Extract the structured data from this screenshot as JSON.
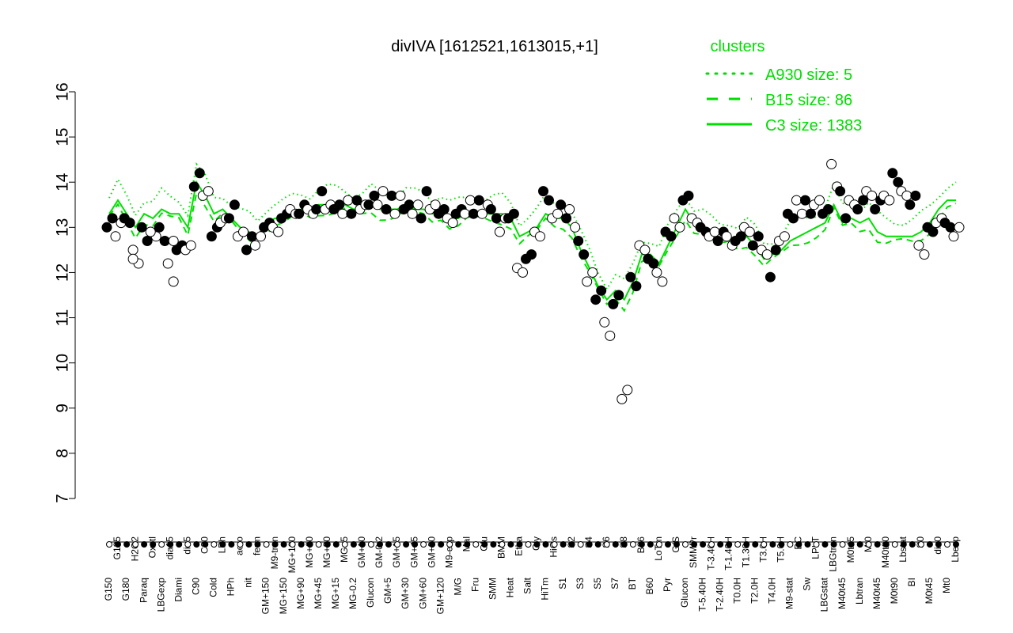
{
  "chart_data": {
    "type": "line",
    "title": "divIVA [1612521,1613015,+1]",
    "xlabel": "",
    "ylabel": "",
    "ylim": [
      7,
      16
    ],
    "yticks": [
      7,
      8,
      9,
      10,
      11,
      12,
      13,
      14,
      15,
      16
    ],
    "grid": false,
    "legend_position": "top-right",
    "legend": {
      "title": "clusters",
      "entries": [
        {
          "label": "A930 size: 5",
          "style": "dotted"
        },
        {
          "label": "B15 size: 86",
          "style": "dashed"
        },
        {
          "label": "C3 size: 1383",
          "style": "solid"
        }
      ]
    },
    "colors": {
      "line": "#00e000",
      "points": "#000000",
      "axis": "#000000"
    },
    "categories": [
      "G150",
      "G135",
      "G180",
      "H2O2",
      "Paraq",
      "Oxctl",
      "LBGexp",
      "dia15",
      "Diami",
      "dia5",
      "C90",
      "C30",
      "Cold",
      "LPh",
      "HPh",
      "aero",
      "nit",
      "ferm",
      "GM+150",
      "M9-tran",
      "MG+150",
      "MG+120",
      "MG+90",
      "MG+60",
      "MG+45",
      "MG+30",
      "MG+15",
      "MG+5",
      "MG-0.2",
      "GM+10",
      "Glucon",
      "GM-0.2",
      "GM+5",
      "GM+15",
      "GM+30",
      "GM+45",
      "GM+60",
      "GM+90",
      "GM+120",
      "M9-exp",
      "M/G",
      "Mal",
      "Fru",
      "Glu",
      "SMM",
      "BMM",
      "Heat",
      "Etha",
      "Salt",
      "Gly",
      "HiTm",
      "HiOs",
      "S1",
      "S2",
      "S3",
      "S4",
      "S5",
      "S6",
      "S7",
      "S8",
      "BT",
      "B36",
      "B60",
      "LoTm",
      "Pyr",
      "G/S",
      "Glucon",
      "SMMPr",
      "T-5.40H",
      "T-3.40H",
      "T-2.40H",
      "T-1.40H",
      "T0.0H",
      "T1.30H",
      "T2.0H",
      "T3.0H",
      "T4.0H",
      "T5.0H",
      "M9-stat",
      "BC",
      "Sw",
      "LPhT",
      "LBGstat",
      "LBGtran",
      "M40t45",
      "M0t45",
      "Lbtran",
      "Mt0",
      "M40t45",
      "M40t90",
      "M0t90",
      "Lbstat",
      "BI",
      "S0",
      "M0t45",
      "dia0",
      "Mt0",
      "Lbexp"
    ],
    "series": [
      {
        "name": "",
        "values": [
          13.3,
          13.6,
          13.3,
          13.0,
          13.3,
          13.2,
          13.4,
          13.3,
          13.3,
          13.0,
          14.0,
          13.7,
          13.3,
          13.4,
          13.2,
          13.0,
          12.9,
          12.8,
          13.1,
          13.2,
          13.2,
          13.3,
          13.4,
          13.4,
          13.5,
          13.5,
          13.5,
          13.5,
          13.4,
          13.4,
          13.5,
          13.4,
          13.4,
          13.4,
          13.5,
          13.4,
          13.4,
          13.3,
          13.4,
          13.2,
          13.2,
          13.3,
          13.3,
          13.3,
          13.3,
          13.3,
          13.2,
          12.8,
          12.9,
          13.0,
          13.3,
          13.2,
          13.2,
          13.0,
          12.5,
          12.1,
          11.7,
          11.4,
          11.6,
          11.4,
          11.8,
          12.4,
          12.4,
          12.2,
          12.6,
          13.0,
          13.4,
          13.1,
          13.0,
          12.8,
          12.7,
          12.8,
          12.7,
          12.8,
          12.6,
          12.3,
          12.4,
          12.5,
          12.7,
          12.8,
          12.9,
          13.0,
          13.1,
          13.5,
          13.1,
          13.2,
          13.1,
          13.2,
          12.9,
          12.8,
          12.8,
          12.8,
          12.8,
          12.9,
          13.1,
          13.4,
          13.6,
          13.6
        ]
      }
    ],
    "points": [
      [
        0,
        13.0
      ],
      [
        0,
        13.2
      ],
      [
        1,
        12.8
      ],
      [
        1,
        13.1
      ],
      [
        2,
        13.2
      ],
      [
        2,
        13.1
      ],
      [
        3,
        12.5
      ],
      [
        3,
        12.2
      ],
      [
        3,
        12.3
      ],
      [
        4,
        12.7
      ],
      [
        4,
        13.0
      ],
      [
        5,
        12.8
      ],
      [
        5,
        12.9
      ],
      [
        6,
        12.7
      ],
      [
        6,
        13.0
      ],
      [
        7,
        12.7
      ],
      [
        7,
        12.2
      ],
      [
        7,
        11.8
      ],
      [
        8,
        12.5
      ],
      [
        8,
        12.6
      ],
      [
        9,
        12.5
      ],
      [
        9,
        12.6
      ],
      [
        10,
        13.9
      ],
      [
        10,
        14.2
      ],
      [
        11,
        13.7
      ],
      [
        11,
        13.8
      ],
      [
        12,
        12.8
      ],
      [
        12,
        13.0
      ],
      [
        13,
        13.1
      ],
      [
        13,
        13.2
      ],
      [
        14,
        13.2
      ],
      [
        14,
        13.5
      ],
      [
        15,
        12.8
      ],
      [
        15,
        12.9
      ],
      [
        16,
        12.5
      ],
      [
        16,
        12.8
      ],
      [
        17,
        12.6
      ],
      [
        17,
        12.8
      ],
      [
        18,
        13.0
      ],
      [
        18,
        13.1
      ],
      [
        19,
        13.0
      ],
      [
        19,
        12.9
      ],
      [
        20,
        13.2
      ],
      [
        20,
        13.3
      ],
      [
        21,
        13.4
      ],
      [
        21,
        13.3
      ],
      [
        22,
        13.3
      ],
      [
        22,
        13.5
      ],
      [
        23,
        13.4
      ],
      [
        23,
        13.3
      ],
      [
        24,
        13.4
      ],
      [
        24,
        13.8
      ],
      [
        25,
        13.4
      ],
      [
        25,
        13.5
      ],
      [
        26,
        13.4
      ],
      [
        26,
        13.5
      ],
      [
        27,
        13.3
      ],
      [
        27,
        13.6
      ],
      [
        28,
        13.3
      ],
      [
        28,
        13.6
      ],
      [
        29,
        13.4
      ],
      [
        29,
        13.5
      ],
      [
        30,
        13.5
      ],
      [
        30,
        13.7
      ],
      [
        31,
        13.5
      ],
      [
        31,
        13.8
      ],
      [
        32,
        13.4
      ],
      [
        32,
        13.7
      ],
      [
        33,
        13.3
      ],
      [
        33,
        13.7
      ],
      [
        34,
        13.4
      ],
      [
        34,
        13.5
      ],
      [
        35,
        13.3
      ],
      [
        35,
        13.5
      ],
      [
        36,
        13.2
      ],
      [
        36,
        13.8
      ],
      [
        37,
        13.4
      ],
      [
        37,
        13.5
      ],
      [
        38,
        13.3
      ],
      [
        38,
        13.4
      ],
      [
        39,
        13.2
      ],
      [
        39,
        13.1
      ],
      [
        40,
        13.3
      ],
      [
        40,
        13.4
      ],
      [
        41,
        13.3
      ],
      [
        41,
        13.6
      ],
      [
        42,
        13.3
      ],
      [
        42,
        13.6
      ],
      [
        43,
        13.3
      ],
      [
        43,
        13.5
      ],
      [
        44,
        13.4
      ],
      [
        44,
        13.2
      ],
      [
        45,
        12.9
      ],
      [
        45,
        13.2
      ],
      [
        46,
        13.2
      ],
      [
        46,
        13.3
      ],
      [
        47,
        12.1
      ],
      [
        47,
        12.0
      ],
      [
        48,
        12.3
      ],
      [
        48,
        12.4
      ],
      [
        49,
        12.9
      ],
      [
        49,
        12.8
      ],
      [
        50,
        13.8
      ],
      [
        50,
        13.6
      ],
      [
        51,
        13.2
      ],
      [
        51,
        13.3
      ],
      [
        52,
        13.5
      ],
      [
        52,
        13.2
      ],
      [
        53,
        13.4
      ],
      [
        53,
        13.0
      ],
      [
        54,
        12.7
      ],
      [
        54,
        12.4
      ],
      [
        55,
        11.8
      ],
      [
        55,
        12.0
      ],
      [
        56,
        11.4
      ],
      [
        56,
        11.6
      ],
      [
        57,
        10.9
      ],
      [
        57,
        10.6
      ],
      [
        58,
        11.3
      ],
      [
        58,
        11.5
      ],
      [
        59,
        9.2
      ],
      [
        59,
        9.4
      ],
      [
        60,
        11.9
      ],
      [
        60,
        11.7
      ],
      [
        61,
        12.6
      ],
      [
        61,
        12.5
      ],
      [
        62,
        12.3
      ],
      [
        62,
        12.2
      ],
      [
        63,
        12.0
      ],
      [
        63,
        11.8
      ],
      [
        64,
        12.9
      ],
      [
        64,
        12.8
      ],
      [
        65,
        13.2
      ],
      [
        65,
        13.0
      ],
      [
        66,
        13.6
      ],
      [
        66,
        13.7
      ],
      [
        67,
        13.2
      ],
      [
        67,
        13.1
      ],
      [
        68,
        13.0
      ],
      [
        68,
        12.9
      ],
      [
        69,
        12.8
      ],
      [
        69,
        12.9
      ],
      [
        70,
        12.7
      ],
      [
        70,
        12.9
      ],
      [
        71,
        12.8
      ],
      [
        71,
        12.6
      ],
      [
        72,
        12.7
      ],
      [
        72,
        12.8
      ],
      [
        73,
        13.0
      ],
      [
        73,
        12.9
      ],
      [
        74,
        12.6
      ],
      [
        74,
        12.8
      ],
      [
        75,
        12.5
      ],
      [
        75,
        12.4
      ],
      [
        76,
        11.9
      ],
      [
        76,
        12.5
      ],
      [
        77,
        12.7
      ],
      [
        77,
        12.8
      ],
      [
        78,
        13.3
      ],
      [
        78,
        13.2
      ],
      [
        79,
        13.6
      ],
      [
        79,
        13.3
      ],
      [
        80,
        13.6
      ],
      [
        80,
        13.3
      ],
      [
        81,
        13.5
      ],
      [
        81,
        13.6
      ],
      [
        82,
        13.3
      ],
      [
        82,
        13.4
      ],
      [
        83,
        14.4
      ],
      [
        83,
        13.9
      ],
      [
        84,
        13.8
      ],
      [
        84,
        13.2
      ],
      [
        85,
        13.6
      ],
      [
        85,
        13.5
      ],
      [
        86,
        13.4
      ],
      [
        86,
        13.6
      ],
      [
        87,
        13.8
      ],
      [
        87,
        13.7
      ],
      [
        88,
        13.4
      ],
      [
        88,
        13.6
      ],
      [
        89,
        13.7
      ],
      [
        89,
        13.6
      ],
      [
        90,
        14.2
      ],
      [
        90,
        14.0
      ],
      [
        91,
        13.8
      ],
      [
        91,
        13.7
      ],
      [
        92,
        13.5
      ],
      [
        92,
        13.7
      ],
      [
        93,
        12.6
      ],
      [
        93,
        12.4
      ],
      [
        94,
        13.0
      ],
      [
        94,
        12.9
      ],
      [
        95,
        13.1
      ],
      [
        95,
        13.2
      ],
      [
        96,
        13.1
      ],
      [
        96,
        13.0
      ],
      [
        97,
        12.8
      ],
      [
        97,
        13.0
      ]
    ],
    "point_fill": "alternating black / white"
  }
}
